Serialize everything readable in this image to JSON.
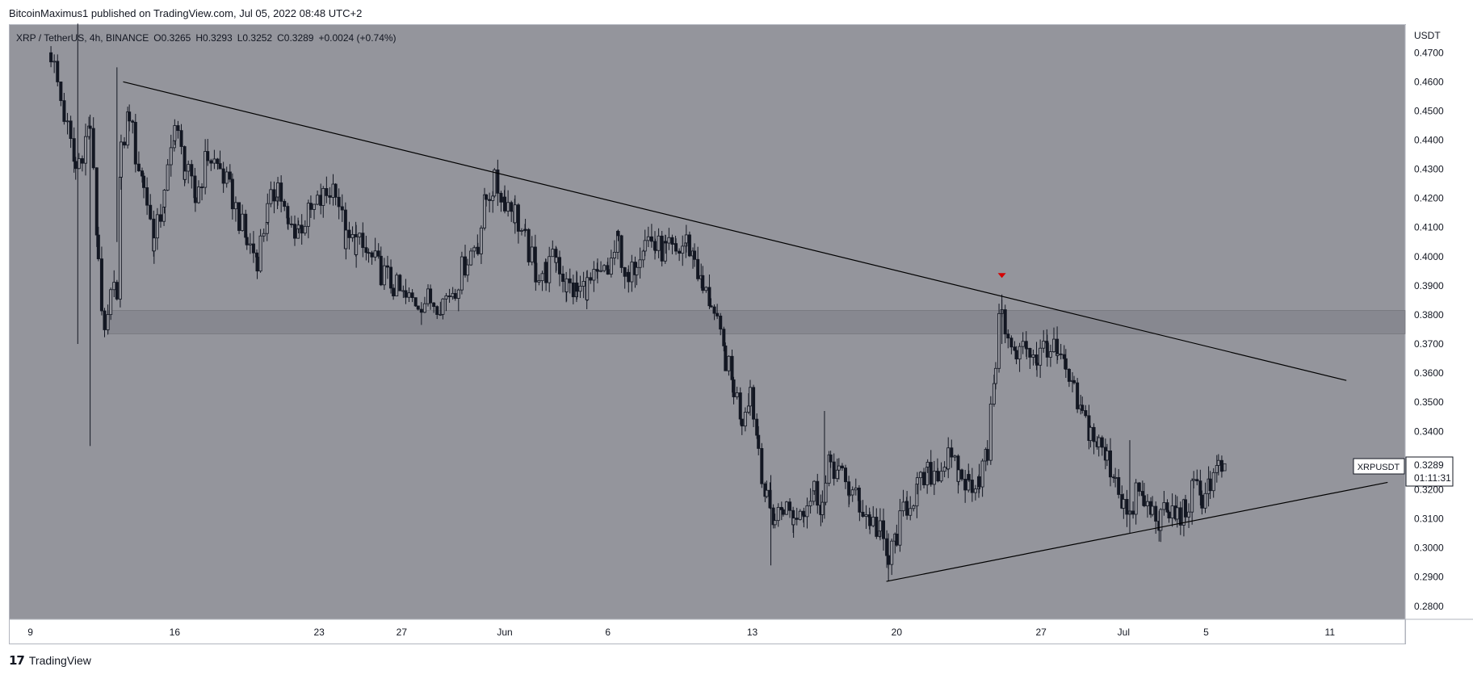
{
  "header": {
    "published_by": "BitcoinMaximus1 published on TradingView.com, Jul 05, 2022 08:48 UTC+2"
  },
  "footer": {
    "brand": "TradingView",
    "logo_glyph": "17"
  },
  "colors": {
    "chart_bg": "#94959c",
    "candle": "#131722",
    "zone": "#7f8088",
    "trendline": "#000000",
    "marker": "#d50000",
    "axis_bg": "#ffffff",
    "axis_text": "#131722"
  },
  "chart_data": {
    "type": "candlestick",
    "symbol_line": {
      "title": "XRP / TetherUS, 4h, BINANCE",
      "o_label": "O",
      "o_value": "0.3265",
      "h_label": "H",
      "h_value": "0.3293",
      "l_label": "L",
      "l_value": "0.3252",
      "c_label": "C",
      "c_value": "0.3289",
      "change": "+0.0024 (+0.74%)"
    },
    "y_axis": {
      "unit": "USDT",
      "ylim": [
        0.2755,
        0.4795
      ],
      "ticks": [
        "0.4700",
        "0.4600",
        "0.4500",
        "0.4400",
        "0.4300",
        "0.4200",
        "0.4100",
        "0.4000",
        "0.3900",
        "0.3800",
        "0.3700",
        "0.3600",
        "0.3500",
        "0.3400",
        "0.3200",
        "0.3100",
        "0.3000",
        "0.2900",
        "0.2800"
      ]
    },
    "x_axis": {
      "xlim": [
        -1.0,
        66.65
      ],
      "ticks": [
        {
          "label": "9",
          "x": 0
        },
        {
          "label": "16",
          "x": 7
        },
        {
          "label": "23",
          "x": 14
        },
        {
          "label": "27",
          "x": 18
        },
        {
          "label": "Jun",
          "x": 23
        },
        {
          "label": "6",
          "x": 28
        },
        {
          "label": "13",
          "x": 35
        },
        {
          "label": "20",
          "x": 42
        },
        {
          "label": "27",
          "x": 49
        },
        {
          "label": "Jul",
          "x": 53
        },
        {
          "label": "5",
          "x": 57
        },
        {
          "label": "11",
          "x": 63
        }
      ]
    },
    "last_price": {
      "symbol": "XRPUSDT",
      "value": "0.3289",
      "countdown": "01:11:31",
      "price": 0.3289
    },
    "support_zone": {
      "low": 0.3735,
      "high": 0.3815
    },
    "descending_trendline": [
      [
        4.5,
        0.46
      ],
      [
        63.8,
        0.3575
      ]
    ],
    "ascending_trendline": [
      [
        41.5,
        0.2885
      ],
      [
        65.8,
        0.3225
      ]
    ],
    "marker": {
      "type": "down-triangle",
      "x": 47.1,
      "y": 0.3935
    },
    "closes": [
      {
        "x": 1.0,
        "c": 0.47
      },
      {
        "x": 2.2,
        "c": 0.43
      },
      {
        "x": 2.9,
        "c": 0.445
      },
      {
        "x": 3.3,
        "c": 0.4
      },
      {
        "x": 3.6,
        "c": 0.37
      },
      {
        "x": 3.9,
        "c": 0.385
      },
      {
        "x": 4.2,
        "c": 0.39
      },
      {
        "x": 4.4,
        "c": 0.435
      },
      {
        "x": 4.8,
        "c": 0.45
      },
      {
        "x": 5.1,
        "c": 0.435
      },
      {
        "x": 5.5,
        "c": 0.425
      },
      {
        "x": 6.0,
        "c": 0.405
      },
      {
        "x": 6.5,
        "c": 0.42
      },
      {
        "x": 7.0,
        "c": 0.445
      },
      {
        "x": 7.5,
        "c": 0.43
      },
      {
        "x": 8.0,
        "c": 0.42
      },
      {
        "x": 8.6,
        "c": 0.435
      },
      {
        "x": 9.2,
        "c": 0.43
      },
      {
        "x": 9.8,
        "c": 0.42
      },
      {
        "x": 10.5,
        "c": 0.405
      },
      {
        "x": 11.0,
        "c": 0.4
      },
      {
        "x": 11.5,
        "c": 0.415
      },
      {
        "x": 12.0,
        "c": 0.425
      },
      {
        "x": 12.5,
        "c": 0.41
      },
      {
        "x": 13.0,
        "c": 0.41
      },
      {
        "x": 13.6,
        "c": 0.415
      },
      {
        "x": 14.2,
        "c": 0.42
      },
      {
        "x": 14.8,
        "c": 0.425
      },
      {
        "x": 15.3,
        "c": 0.405
      },
      {
        "x": 15.8,
        "c": 0.405
      },
      {
        "x": 16.4,
        "c": 0.4
      },
      {
        "x": 17.0,
        "c": 0.395
      },
      {
        "x": 17.6,
        "c": 0.39
      },
      {
        "x": 18.2,
        "c": 0.385
      },
      {
        "x": 18.8,
        "c": 0.385
      },
      {
        "x": 19.4,
        "c": 0.385
      },
      {
        "x": 20.0,
        "c": 0.385
      },
      {
        "x": 20.6,
        "c": 0.39
      },
      {
        "x": 21.2,
        "c": 0.4
      },
      {
        "x": 21.7,
        "c": 0.405
      },
      {
        "x": 22.1,
        "c": 0.42
      },
      {
        "x": 22.5,
        "c": 0.425
      },
      {
        "x": 23.0,
        "c": 0.42
      },
      {
        "x": 23.5,
        "c": 0.415
      },
      {
        "x": 24.0,
        "c": 0.405
      },
      {
        "x": 24.5,
        "c": 0.395
      },
      {
        "x": 25.0,
        "c": 0.395
      },
      {
        "x": 25.5,
        "c": 0.4
      },
      {
        "x": 26.0,
        "c": 0.39
      },
      {
        "x": 26.5,
        "c": 0.388
      },
      {
        "x": 27.0,
        "c": 0.39
      },
      {
        "x": 27.5,
        "c": 0.392
      },
      {
        "x": 28.0,
        "c": 0.395
      },
      {
        "x": 28.5,
        "c": 0.405
      },
      {
        "x": 29.0,
        "c": 0.39
      },
      {
        "x": 29.4,
        "c": 0.4
      },
      {
        "x": 29.8,
        "c": 0.408
      },
      {
        "x": 30.3,
        "c": 0.403
      },
      {
        "x": 30.8,
        "c": 0.402
      },
      {
        "x": 31.3,
        "c": 0.401
      },
      {
        "x": 31.8,
        "c": 0.405
      },
      {
        "x": 32.2,
        "c": 0.4
      },
      {
        "x": 32.6,
        "c": 0.388
      },
      {
        "x": 33.0,
        "c": 0.385
      },
      {
        "x": 33.3,
        "c": 0.375
      },
      {
        "x": 33.7,
        "c": 0.365
      },
      {
        "x": 34.1,
        "c": 0.355
      },
      {
        "x": 34.5,
        "c": 0.345
      },
      {
        "x": 34.9,
        "c": 0.355
      },
      {
        "x": 35.3,
        "c": 0.335
      },
      {
        "x": 35.7,
        "c": 0.315
      },
      {
        "x": 36.1,
        "c": 0.31
      },
      {
        "x": 36.5,
        "c": 0.315
      },
      {
        "x": 37.0,
        "c": 0.31
      },
      {
        "x": 37.5,
        "c": 0.315
      },
      {
        "x": 38.0,
        "c": 0.32
      },
      {
        "x": 38.4,
        "c": 0.315
      },
      {
        "x": 38.8,
        "c": 0.33
      },
      {
        "x": 39.2,
        "c": 0.325
      },
      {
        "x": 39.7,
        "c": 0.32
      },
      {
        "x": 40.2,
        "c": 0.315
      },
      {
        "x": 40.7,
        "c": 0.31
      },
      {
        "x": 41.2,
        "c": 0.305
      },
      {
        "x": 41.6,
        "c": 0.295
      },
      {
        "x": 42.0,
        "c": 0.305
      },
      {
        "x": 42.5,
        "c": 0.315
      },
      {
        "x": 43.0,
        "c": 0.32
      },
      {
        "x": 43.5,
        "c": 0.325
      },
      {
        "x": 44.0,
        "c": 0.327
      },
      {
        "x": 44.5,
        "c": 0.33
      },
      {
        "x": 45.0,
        "c": 0.325
      },
      {
        "x": 45.5,
        "c": 0.322
      },
      {
        "x": 46.0,
        "c": 0.325
      },
      {
        "x": 46.4,
        "c": 0.332
      },
      {
        "x": 46.8,
        "c": 0.365
      },
      {
        "x": 47.1,
        "c": 0.385
      },
      {
        "x": 47.4,
        "c": 0.37
      },
      {
        "x": 47.8,
        "c": 0.365
      },
      {
        "x": 48.3,
        "c": 0.37
      },
      {
        "x": 48.8,
        "c": 0.365
      },
      {
        "x": 49.3,
        "c": 0.37
      },
      {
        "x": 49.8,
        "c": 0.365
      },
      {
        "x": 50.2,
        "c": 0.36
      },
      {
        "x": 50.6,
        "c": 0.352
      },
      {
        "x": 51.0,
        "c": 0.345
      },
      {
        "x": 51.4,
        "c": 0.34
      },
      {
        "x": 51.8,
        "c": 0.335
      },
      {
        "x": 52.2,
        "c": 0.33
      },
      {
        "x": 52.6,
        "c": 0.325
      },
      {
        "x": 53.0,
        "c": 0.315
      },
      {
        "x": 53.3,
        "c": 0.308
      },
      {
        "x": 53.6,
        "c": 0.32
      },
      {
        "x": 54.0,
        "c": 0.315
      },
      {
        "x": 54.4,
        "c": 0.312
      },
      {
        "x": 54.8,
        "c": 0.31
      },
      {
        "x": 55.2,
        "c": 0.312
      },
      {
        "x": 55.6,
        "c": 0.311
      },
      {
        "x": 56.0,
        "c": 0.313
      },
      {
        "x": 56.4,
        "c": 0.32
      },
      {
        "x": 56.8,
        "c": 0.318
      },
      {
        "x": 57.2,
        "c": 0.323
      },
      {
        "x": 57.6,
        "c": 0.3265
      },
      {
        "x": 57.9,
        "c": 0.3289
      }
    ]
  }
}
